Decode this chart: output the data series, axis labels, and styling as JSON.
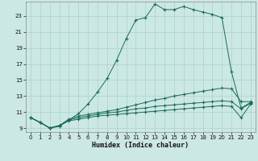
{
  "xlabel": "Humidex (Indice chaleur)",
  "bg_color": "#cce8e4",
  "grid_color": "#aad0cc",
  "line_color": "#1a6b5a",
  "xlim": [
    -0.5,
    23.5
  ],
  "ylim": [
    8.5,
    24.8
  ],
  "yticks": [
    9,
    11,
    13,
    15,
    17,
    19,
    21,
    23
  ],
  "xticks": [
    0,
    1,
    2,
    3,
    4,
    5,
    6,
    7,
    8,
    9,
    10,
    11,
    12,
    13,
    14,
    15,
    16,
    17,
    18,
    19,
    20,
    21,
    22,
    23
  ],
  "series": {
    "main": [
      10.3,
      9.7,
      9.0,
      9.2,
      10.0,
      10.8,
      12.0,
      13.5,
      15.2,
      17.5,
      20.2,
      22.5,
      22.8,
      24.5,
      23.8,
      23.8,
      24.2,
      23.8,
      23.5,
      23.2,
      22.8,
      16.0,
      11.5,
      12.2
    ],
    "line2": [
      10.3,
      9.7,
      9.0,
      9.3,
      10.1,
      10.5,
      10.7,
      10.9,
      11.1,
      11.3,
      11.6,
      11.9,
      12.2,
      12.5,
      12.7,
      13.0,
      13.2,
      13.4,
      13.6,
      13.8,
      14.0,
      13.9,
      12.3,
      12.3
    ],
    "line3": [
      10.3,
      9.7,
      9.0,
      9.3,
      10.0,
      10.3,
      10.5,
      10.7,
      10.9,
      11.0,
      11.2,
      11.4,
      11.5,
      11.7,
      11.8,
      11.9,
      12.0,
      12.1,
      12.2,
      12.3,
      12.4,
      12.3,
      11.4,
      12.1
    ],
    "line4": [
      10.3,
      9.7,
      9.0,
      9.3,
      9.9,
      10.1,
      10.3,
      10.5,
      10.6,
      10.7,
      10.8,
      10.9,
      11.0,
      11.1,
      11.2,
      11.3,
      11.4,
      11.5,
      11.6,
      11.7,
      11.8,
      11.7,
      10.3,
      12.0
    ]
  }
}
